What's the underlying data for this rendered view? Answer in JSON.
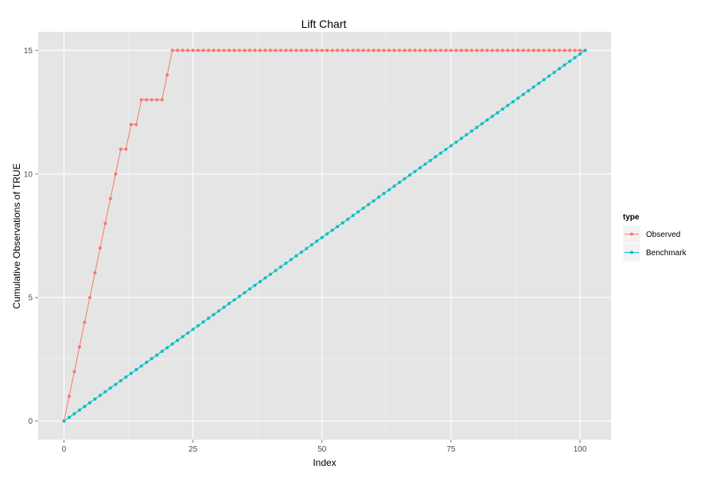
{
  "chart_data": {
    "type": "line",
    "title": "Lift Chart",
    "xlabel": "Index",
    "ylabel": "Cumulative Observations of TRUE",
    "xlim": [
      -5,
      106
    ],
    "ylim": [
      -0.75,
      15.75
    ],
    "x_ticks": [
      0,
      25,
      50,
      75,
      100
    ],
    "y_ticks": [
      0,
      5,
      10,
      15
    ],
    "x_tick_labels": [
      "0",
      "25",
      "50",
      "75",
      "100"
    ],
    "y_tick_labels": [
      "0",
      "5",
      "10",
      "15"
    ],
    "grid": true,
    "legend": {
      "title": "type",
      "placement": "right"
    },
    "series": [
      {
        "name": "Observed",
        "color": "#F8766D",
        "x": [
          0,
          1,
          2,
          3,
          4,
          5,
          6,
          7,
          8,
          9,
          10,
          11,
          12,
          13,
          14,
          15,
          16,
          17,
          18,
          19,
          20,
          21,
          22,
          23,
          24,
          25,
          26,
          27,
          28,
          29,
          30,
          31,
          32,
          33,
          34,
          35,
          36,
          37,
          38,
          39,
          40,
          41,
          42,
          43,
          44,
          45,
          46,
          47,
          48,
          49,
          50,
          51,
          52,
          53,
          54,
          55,
          56,
          57,
          58,
          59,
          60,
          61,
          62,
          63,
          64,
          65,
          66,
          67,
          68,
          69,
          70,
          71,
          72,
          73,
          74,
          75,
          76,
          77,
          78,
          79,
          80,
          81,
          82,
          83,
          84,
          85,
          86,
          87,
          88,
          89,
          90,
          91,
          92,
          93,
          94,
          95,
          96,
          97,
          98,
          99,
          100,
          101
        ],
        "values": [
          0,
          1,
          2,
          3,
          4,
          5,
          6,
          7,
          8,
          9,
          10,
          11,
          11,
          12,
          12,
          13,
          13,
          13,
          13,
          13,
          14,
          15,
          15,
          15,
          15,
          15,
          15,
          15,
          15,
          15,
          15,
          15,
          15,
          15,
          15,
          15,
          15,
          15,
          15,
          15,
          15,
          15,
          15,
          15,
          15,
          15,
          15,
          15,
          15,
          15,
          15,
          15,
          15,
          15,
          15,
          15,
          15,
          15,
          15,
          15,
          15,
          15,
          15,
          15,
          15,
          15,
          15,
          15,
          15,
          15,
          15,
          15,
          15,
          15,
          15,
          15,
          15,
          15,
          15,
          15,
          15,
          15,
          15,
          15,
          15,
          15,
          15,
          15,
          15,
          15,
          15,
          15,
          15,
          15,
          15,
          15,
          15,
          15,
          15,
          15,
          15,
          15
        ]
      },
      {
        "name": "Benchmark",
        "color": "#00BFC4",
        "x_start": 0,
        "x_end": 101,
        "y_start": 0,
        "y_end": 15,
        "n_points": 102
      }
    ]
  }
}
